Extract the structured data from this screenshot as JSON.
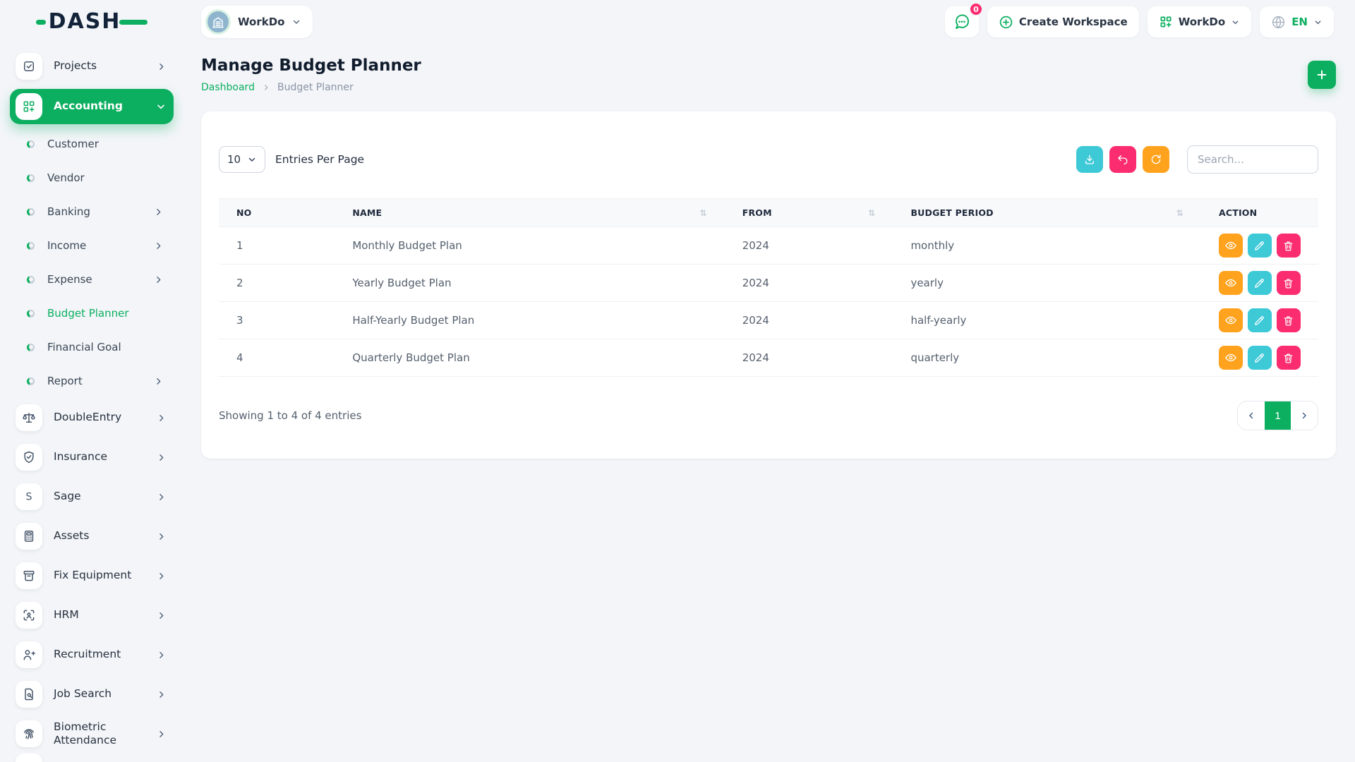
{
  "brand": {
    "logo_text": "DASH"
  },
  "topbar": {
    "workspace_name": "WorkDo",
    "messages_badge": "0",
    "create_workspace_label": "Create Workspace",
    "app_switcher_label": "WorkDo",
    "language": "EN"
  },
  "sidebar": {
    "items": [
      {
        "label": "Projects",
        "icon": "checkbox-icon",
        "chevron": "right",
        "active": false
      },
      {
        "label": "Accounting",
        "icon": "grid-plus-icon",
        "chevron": "down",
        "active": true,
        "children": [
          {
            "label": "Customer",
            "chevron": null,
            "active": false
          },
          {
            "label": "Vendor",
            "chevron": null,
            "active": false
          },
          {
            "label": "Banking",
            "chevron": "right",
            "active": false
          },
          {
            "label": "Income",
            "chevron": "right",
            "active": false
          },
          {
            "label": "Expense",
            "chevron": "right",
            "active": false
          },
          {
            "label": "Budget Planner",
            "chevron": null,
            "active": true
          },
          {
            "label": "Financial Goal",
            "chevron": null,
            "active": false
          },
          {
            "label": "Report",
            "chevron": "right",
            "active": false
          }
        ]
      },
      {
        "label": "DoubleEntry",
        "icon": "scales-icon",
        "chevron": "right",
        "active": false
      },
      {
        "label": "Insurance",
        "icon": "shield-check-icon",
        "chevron": "right",
        "active": false
      },
      {
        "label": "Sage",
        "icon": "s-letter-icon",
        "chevron": "right",
        "active": false
      },
      {
        "label": "Assets",
        "icon": "calculator-icon",
        "chevron": "right",
        "active": false
      },
      {
        "label": "Fix Equipment",
        "icon": "archive-icon",
        "chevron": "right",
        "active": false
      },
      {
        "label": "HRM",
        "icon": "scan-user-icon",
        "chevron": "right",
        "active": false
      },
      {
        "label": "Recruitment",
        "icon": "user-plus-icon",
        "chevron": "right",
        "active": false
      },
      {
        "label": "Job Search",
        "icon": "doc-search-icon",
        "chevron": "right",
        "active": false
      },
      {
        "label": "Biometric Attendance",
        "icon": "fingerprint-icon",
        "chevron": "right",
        "active": false
      }
    ]
  },
  "page": {
    "title": "Manage Budget Planner",
    "breadcrumb_home": "Dashboard",
    "breadcrumb_current": "Budget Planner"
  },
  "card": {
    "entries_value": "10",
    "entries_label": "Entries Per Page",
    "search_placeholder": "Search...",
    "toolbar": [
      {
        "icon": "download-icon",
        "color": "teal"
      },
      {
        "icon": "undo-icon",
        "color": "pink"
      },
      {
        "icon": "refresh-icon",
        "color": "orange"
      }
    ]
  },
  "table": {
    "columns": [
      {
        "label": "NO",
        "sortable": false
      },
      {
        "label": "NAME",
        "sortable": true
      },
      {
        "label": "FROM",
        "sortable": true
      },
      {
        "label": "BUDGET PERIOD",
        "sortable": true
      },
      {
        "label": "ACTION",
        "sortable": false
      }
    ],
    "rows": [
      {
        "no": "1",
        "name": "Monthly Budget Plan",
        "from": "2024",
        "period": "monthly"
      },
      {
        "no": "2",
        "name": "Yearly Budget Plan",
        "from": "2024",
        "period": "yearly"
      },
      {
        "no": "3",
        "name": "Half-Yearly Budget Plan",
        "from": "2024",
        "period": "half-yearly"
      },
      {
        "no": "4",
        "name": "Quarterly Budget Plan",
        "from": "2024",
        "period": "quarterly"
      }
    ],
    "row_actions": [
      {
        "icon": "eye-icon",
        "color": "orange"
      },
      {
        "icon": "pencil-icon",
        "color": "teal"
      },
      {
        "icon": "trash-icon",
        "color": "pink"
      }
    ],
    "sort_glyph": "⇅"
  },
  "footer": {
    "showing_text": "Showing 1 to 4 of 4 entries",
    "current_page": "1"
  },
  "colors": {
    "accent_green": "#0CAF60",
    "teal": "#3EC9D6",
    "orange": "#FFA21D",
    "pink": "#FB2C6F"
  }
}
